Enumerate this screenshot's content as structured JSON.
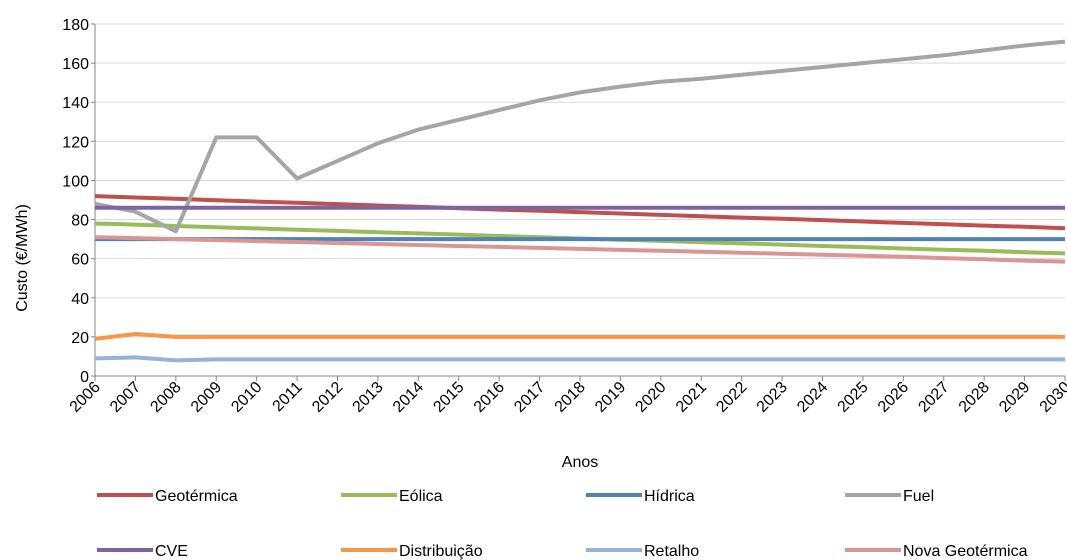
{
  "chart_data": {
    "type": "line",
    "title": "",
    "xlabel": "Anos",
    "ylabel": "Custo (€/MWh)",
    "ylim": [
      0,
      180
    ],
    "yticks": [
      0,
      20,
      40,
      60,
      80,
      100,
      120,
      140,
      160,
      180
    ],
    "grid": true,
    "legend_position": "bottom",
    "categories": [
      "2006",
      "2007",
      "2008",
      "2009",
      "2010",
      "2011",
      "2012",
      "2013",
      "2014",
      "2015",
      "2016",
      "2017",
      "2018",
      "2019",
      "2020",
      "2021",
      "2022",
      "2023",
      "2024",
      "2025",
      "2026",
      "2027",
      "2028",
      "2029",
      "2030"
    ],
    "series": [
      {
        "name": "Geotérmica",
        "color": "#c0504d",
        "values": [
          92,
          91.3,
          90.6,
          89.9,
          89.2,
          88.6,
          87.9,
          87.2,
          86.5,
          85.8,
          85.1,
          84.5,
          83.8,
          83.1,
          82.4,
          81.7,
          81.0,
          80.4,
          79.7,
          79.0,
          78.3,
          77.6,
          76.9,
          76.3,
          75.6
        ]
      },
      {
        "name": "Eólica",
        "color": "#9bbb59",
        "values": [
          78,
          77.4,
          76.7,
          76.1,
          75.5,
          74.8,
          74.2,
          73.5,
          72.9,
          72.3,
          71.6,
          71.0,
          70.3,
          69.7,
          69.1,
          68.4,
          67.8,
          67.2,
          66.5,
          65.9,
          65.2,
          64.6,
          64.0,
          63.3,
          62.7
        ]
      },
      {
        "name": "Hídrica",
        "color": "#4f81bd",
        "values": [
          70,
          70,
          70,
          70,
          70,
          70,
          70,
          70,
          70,
          70,
          70,
          70,
          70,
          70,
          70,
          70,
          70,
          70,
          70,
          70,
          70,
          70,
          70,
          70,
          70
        ]
      },
      {
        "name": "Fuel",
        "color": "#a5a5a5",
        "values": [
          88,
          84,
          74,
          122,
          122,
          101,
          110,
          119,
          126,
          131,
          136,
          141,
          145,
          148,
          150.5,
          152,
          154,
          156,
          158,
          160,
          162,
          164,
          166.5,
          169,
          171
        ]
      },
      {
        "name": "CVE",
        "color": "#8064a2",
        "values": [
          86,
          86,
          86,
          86,
          86,
          86,
          86,
          86,
          86,
          86,
          86,
          86,
          86,
          86,
          86,
          86,
          86,
          86,
          86,
          86,
          86,
          86,
          86,
          86,
          86
        ]
      },
      {
        "name": "Distribuição",
        "color": "#f79646",
        "values": [
          19,
          21.5,
          20,
          20,
          20,
          20,
          20,
          20,
          20,
          20,
          20,
          20,
          20,
          20,
          20,
          20,
          20,
          20,
          20,
          20,
          20,
          20,
          20,
          20,
          20
        ]
      },
      {
        "name": "Retalho",
        "color": "#95b3d7",
        "values": [
          9,
          9.5,
          8,
          8.5,
          8.5,
          8.5,
          8.5,
          8.5,
          8.5,
          8.5,
          8.5,
          8.5,
          8.5,
          8.5,
          8.5,
          8.5,
          8.5,
          8.5,
          8.5,
          8.5,
          8.5,
          8.5,
          8.5,
          8.5,
          8.5
        ]
      },
      {
        "name": "Nova Geotérmica",
        "color": "#d99694",
        "values": [
          71,
          70.5,
          70,
          69.5,
          69,
          68.5,
          68,
          67.5,
          67,
          66.5,
          66,
          65.5,
          65,
          64.5,
          64,
          63.5,
          63,
          62.5,
          62,
          61.5,
          61,
          60.3,
          59.7,
          59,
          58.5
        ]
      }
    ]
  }
}
